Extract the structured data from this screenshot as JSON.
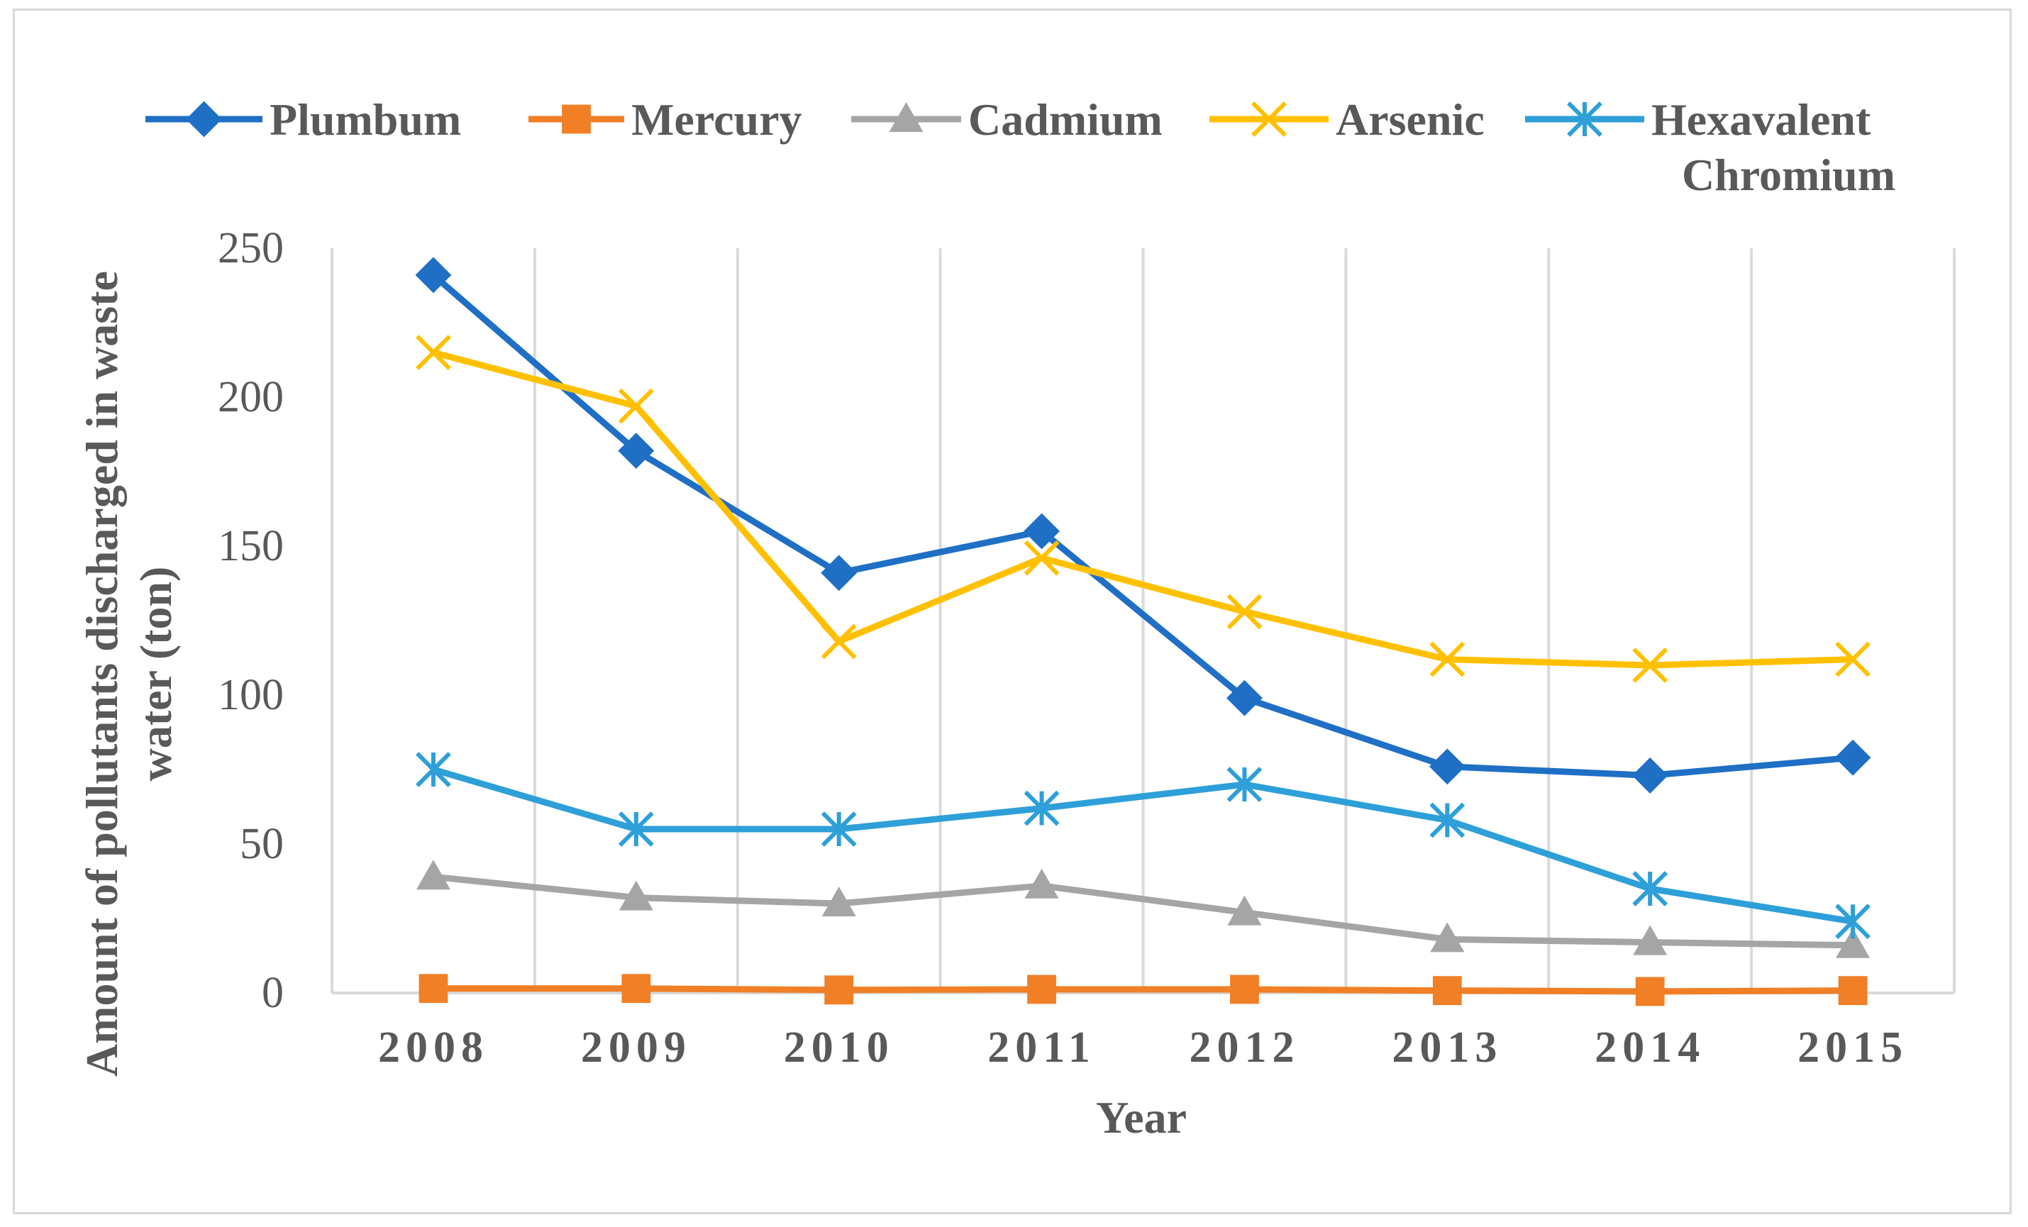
{
  "chart_data": {
    "type": "line",
    "title": "",
    "xlabel": "Year",
    "ylabel": "Amount of pollutants discharged in waste water (ton)",
    "ylim": [
      0,
      250
    ],
    "yticks": [
      "0",
      "50",
      "100",
      "150",
      "200",
      "250"
    ],
    "categories": [
      "2008",
      "2009",
      "2010",
      "2011",
      "2012",
      "2013",
      "2014",
      "2015"
    ],
    "grid": "vertical",
    "legend_position": "top",
    "series": [
      {
        "name": "Plumbum",
        "color": "#1f6fc5",
        "marker": "diamond",
        "values": [
          241,
          182,
          141,
          155,
          99,
          76,
          73,
          79
        ]
      },
      {
        "name": "Mercury",
        "color": "#f07f26",
        "marker": "square",
        "values": [
          1.5,
          1.5,
          1,
          1.2,
          1.2,
          0.8,
          0.5,
          0.8
        ]
      },
      {
        "name": "Cadmium",
        "color": "#a5a5a5",
        "marker": "triangle",
        "values": [
          39,
          32,
          30,
          36,
          27,
          18,
          17,
          16
        ]
      },
      {
        "name": "Arsenic",
        "color": "#ffc000",
        "marker": "x",
        "values": [
          215,
          197,
          118,
          146,
          128,
          112,
          110,
          112
        ]
      },
      {
        "name": "Hexavalent Chromium",
        "name_lines": [
          "Hexavalent",
          "Chromium"
        ],
        "color": "#2e9fd8",
        "marker": "asterisk",
        "values": [
          75,
          55,
          55,
          62,
          70,
          58,
          35,
          24
        ]
      }
    ]
  }
}
